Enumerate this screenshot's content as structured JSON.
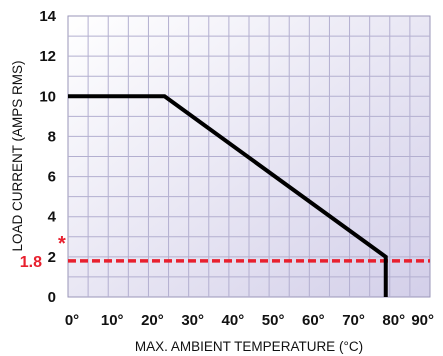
{
  "chart_data": {
    "type": "line",
    "xlabel": "MAX. AMBIENT TEMPERATURE (°C)",
    "ylabel": "LOAD CURRENT (AMPS RMS)",
    "xlim": [
      0,
      90
    ],
    "ylim": [
      0,
      14
    ],
    "x_ticks": [
      0,
      10,
      20,
      30,
      40,
      50,
      60,
      70,
      80,
      90
    ],
    "x_tick_labels": [
      "0°",
      "10°",
      "20°",
      "30°",
      "40°",
      "50°",
      "60°",
      "70°",
      "80°",
      "90°"
    ],
    "y_ticks": [
      0,
      2,
      4,
      6,
      8,
      10,
      12,
      14
    ],
    "y_tick_labels": [
      "0",
      "2",
      "4",
      "6",
      "8",
      "10",
      "12",
      "14"
    ],
    "grid": true,
    "series": [
      {
        "x": [
          0,
          24,
          79,
          79
        ],
        "y": [
          10,
          10,
          2,
          0
        ],
        "color": "#000000"
      }
    ],
    "reference_line": {
      "y": 1.8,
      "label": "1.8",
      "marker": "*",
      "color": "#e8202e",
      "style": "dashed"
    },
    "background_gradient": [
      "#ffffff",
      "#d3cfe9"
    ]
  }
}
